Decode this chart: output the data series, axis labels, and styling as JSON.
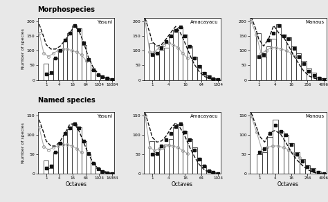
{
  "title_morph": "Morphospecies",
  "title_named": "Named species",
  "ylabel": "Number of species",
  "xlabel": "Octaves",
  "subplots": [
    {
      "site": "Yasuni",
      "row": 0,
      "col": 0,
      "xtick_labels": [
        "1",
        "4",
        "16",
        "64",
        "1024",
        "16384"
      ],
      "ylim": [
        0,
        210
      ],
      "yticks": [
        0,
        50,
        100,
        150,
        200
      ],
      "bars": [
        55,
        20,
        75,
        100,
        130,
        160,
        185,
        175,
        120,
        65,
        35,
        18,
        10,
        5,
        2
      ],
      "black_dots_x": [
        0,
        1,
        2,
        3,
        4,
        5,
        6,
        7,
        8,
        9,
        10,
        11,
        12,
        13,
        14
      ],
      "black_dots_y": [
        20,
        25,
        75,
        100,
        135,
        160,
        185,
        170,
        125,
        70,
        35,
        18,
        10,
        5,
        2
      ],
      "grey_dots_x": [
        -1.5,
        -0.5,
        0.5,
        1.5,
        2.5,
        3.5,
        4.5,
        5.5,
        6.5,
        7.5,
        8.5
      ],
      "grey_dots_y": [
        160,
        90,
        80,
        90,
        100,
        105,
        105,
        100,
        95,
        85,
        65
      ],
      "dashed_x": [
        -1.5,
        -0.5,
        0,
        1,
        2,
        3,
        4,
        5,
        6,
        7,
        8,
        9,
        10,
        11,
        12,
        13,
        14
      ],
      "dashed_y": [
        190,
        145,
        120,
        105,
        105,
        115,
        135,
        158,
        185,
        165,
        125,
        75,
        42,
        22,
        10,
        4,
        1
      ]
    },
    {
      "site": "Amacayacu",
      "row": 0,
      "col": 1,
      "xtick_labels": [
        "1",
        "4",
        "16",
        "64",
        "1024"
      ],
      "ylim": [
        0,
        210
      ],
      "yticks": [
        0,
        50,
        100,
        150,
        200
      ],
      "bars": [
        125,
        90,
        100,
        110,
        150,
        170,
        180,
        155,
        115,
        80,
        50,
        28,
        15,
        5,
        2
      ],
      "black_dots_x": [
        0,
        1,
        2,
        3,
        4,
        5,
        6,
        7,
        8,
        9,
        10,
        11,
        12,
        13,
        14
      ],
      "black_dots_y": [
        85,
        90,
        110,
        130,
        150,
        168,
        180,
        150,
        115,
        75,
        45,
        22,
        10,
        4,
        1
      ],
      "grey_dots_x": [
        -1.5,
        -0.5,
        0.5,
        1.5,
        2.5,
        3.5,
        4.5,
        5.5,
        6.5,
        7.5
      ],
      "grey_dots_y": [
        200,
        95,
        95,
        110,
        120,
        125,
        120,
        110,
        90,
        75
      ],
      "dashed_x": [
        -1.5,
        -0.5,
        0,
        1,
        2,
        3,
        4,
        5,
        6,
        7,
        8,
        9,
        10,
        11,
        12,
        13,
        14
      ],
      "dashed_y": [
        210,
        160,
        130,
        115,
        120,
        140,
        162,
        182,
        160,
        125,
        85,
        52,
        28,
        13,
        5,
        2,
        0
      ]
    },
    {
      "site": "Manaus",
      "row": 0,
      "col": 2,
      "xtick_labels": [
        "1",
        "4",
        "16",
        "256",
        "4096"
      ],
      "ylim": [
        0,
        210
      ],
      "yticks": [
        0,
        50,
        100,
        150,
        200
      ],
      "bars": [
        160,
        80,
        115,
        140,
        190,
        155,
        145,
        115,
        90,
        65,
        40,
        25,
        10,
        5
      ],
      "black_dots_x": [
        0,
        1,
        2,
        3,
        4,
        5,
        6,
        7,
        8,
        9,
        10,
        11,
        12,
        13
      ],
      "black_dots_y": [
        80,
        85,
        135,
        160,
        185,
        150,
        140,
        108,
        80,
        55,
        30,
        15,
        6,
        2
      ],
      "grey_dots_x": [
        -1.5,
        -0.5,
        0.5,
        1.5,
        2.5,
        3.5,
        4.5,
        5.5,
        6.5,
        7.5
      ],
      "grey_dots_y": [
        200,
        155,
        90,
        100,
        110,
        110,
        105,
        100,
        90,
        80
      ],
      "dashed_x": [
        -1.5,
        -0.5,
        0,
        1,
        2,
        3,
        4,
        5,
        6,
        7,
        8,
        9,
        10,
        11,
        12,
        13
      ],
      "dashed_y": [
        215,
        170,
        140,
        115,
        140,
        185,
        160,
        145,
        115,
        82,
        55,
        30,
        14,
        6,
        2,
        0
      ]
    },
    {
      "site": "Yasuni",
      "row": 1,
      "col": 0,
      "xtick_labels": [
        "1",
        "4",
        "16",
        "64",
        "1024",
        "16384"
      ],
      "ylim": [
        0,
        160
      ],
      "yticks": [
        0,
        50,
        100,
        150
      ],
      "bars": [
        35,
        15,
        55,
        80,
        100,
        115,
        130,
        120,
        85,
        50,
        28,
        14,
        7,
        3,
        1
      ],
      "black_dots_x": [
        0,
        1,
        2,
        3,
        4,
        5,
        6,
        7,
        8,
        9,
        10,
        11,
        12,
        13,
        14
      ],
      "black_dots_y": [
        15,
        20,
        55,
        80,
        105,
        118,
        130,
        118,
        85,
        52,
        28,
        13,
        6,
        2,
        1
      ],
      "grey_dots_x": [
        -1.5,
        -0.5,
        0.5,
        1.5,
        2.5,
        3.5,
        4.5,
        5.5,
        6.5,
        7.5
      ],
      "grey_dots_y": [
        120,
        70,
        62,
        68,
        72,
        75,
        75,
        72,
        65,
        55
      ],
      "dashed_x": [
        -1.5,
        -0.5,
        0,
        1,
        2,
        3,
        4,
        5,
        6,
        7,
        8,
        9,
        10,
        11,
        12,
        13,
        14
      ],
      "dashed_y": [
        140,
        105,
        85,
        72,
        72,
        85,
        105,
        128,
        130,
        110,
        80,
        50,
        28,
        13,
        5,
        2,
        0
      ]
    },
    {
      "site": "Amacayacu",
      "row": 1,
      "col": 1,
      "xtick_labels": [
        "1",
        "4",
        "16",
        "64",
        "1024"
      ],
      "ylim": [
        0,
        160
      ],
      "yticks": [
        0,
        50,
        100,
        150
      ],
      "bars": [
        85,
        50,
        65,
        75,
        90,
        120,
        130,
        110,
        90,
        68,
        42,
        22,
        10,
        4,
        1
      ],
      "black_dots_x": [
        0,
        1,
        2,
        3,
        4,
        5,
        6,
        7,
        8,
        9,
        10,
        11,
        12,
        13,
        14
      ],
      "black_dots_y": [
        50,
        52,
        72,
        88,
        105,
        122,
        130,
        108,
        88,
        62,
        38,
        20,
        8,
        3,
        1
      ],
      "grey_dots_x": [
        -1.5,
        -0.5,
        0.5,
        1.5,
        2.5,
        3.5,
        4.5,
        5.5,
        6.5,
        7.5
      ],
      "grey_dots_y": [
        150,
        68,
        60,
        65,
        70,
        73,
        72,
        68,
        60,
        52
      ],
      "dashed_x": [
        -1.5,
        -0.5,
        0,
        1,
        2,
        3,
        4,
        5,
        6,
        7,
        8,
        9,
        10,
        11,
        12,
        13,
        14
      ],
      "dashed_y": [
        158,
        118,
        95,
        82,
        85,
        98,
        118,
        132,
        118,
        96,
        68,
        44,
        24,
        11,
        4,
        1,
        0
      ]
    },
    {
      "site": "Manaus",
      "row": 1,
      "col": 2,
      "xtick_labels": [
        "1",
        "4",
        "16",
        "256",
        "4096"
      ],
      "ylim": [
        0,
        160
      ],
      "yticks": [
        0,
        50,
        100,
        150
      ],
      "bars": [
        50,
        55,
        95,
        140,
        110,
        100,
        80,
        55,
        38,
        22,
        14,
        6,
        2
      ],
      "black_dots_x": [
        0,
        1,
        2,
        3,
        4,
        5,
        6,
        7,
        8,
        9,
        10,
        11,
        12
      ],
      "black_dots_y": [
        55,
        65,
        105,
        125,
        110,
        100,
        75,
        50,
        33,
        18,
        9,
        4,
        1
      ],
      "grey_dots_x": [
        -1.5,
        -0.5,
        0.5,
        1.5,
        2.5,
        3.5,
        4.5,
        5.5,
        6.5,
        7.5
      ],
      "grey_dots_y": [
        150,
        108,
        62,
        68,
        72,
        72,
        68,
        62,
        52,
        42
      ],
      "dashed_x": [
        -1.5,
        -0.5,
        0,
        1,
        2,
        3,
        4,
        5,
        6,
        7,
        8,
        9,
        10,
        11,
        12
      ],
      "dashed_y": [
        158,
        120,
        98,
        82,
        108,
        112,
        102,
        80,
        55,
        36,
        22,
        11,
        4,
        1,
        0
      ]
    }
  ],
  "bar_color": "#ffffff",
  "bar_edgecolor": "#111111",
  "black_dot_color": "#111111",
  "grey_dot_color": "#999999",
  "dashed_curve_color": "#111111",
  "grey_line_color": "#aaaaaa",
  "background_color": "#ffffff",
  "fig_facecolor": "#e8e8e8"
}
